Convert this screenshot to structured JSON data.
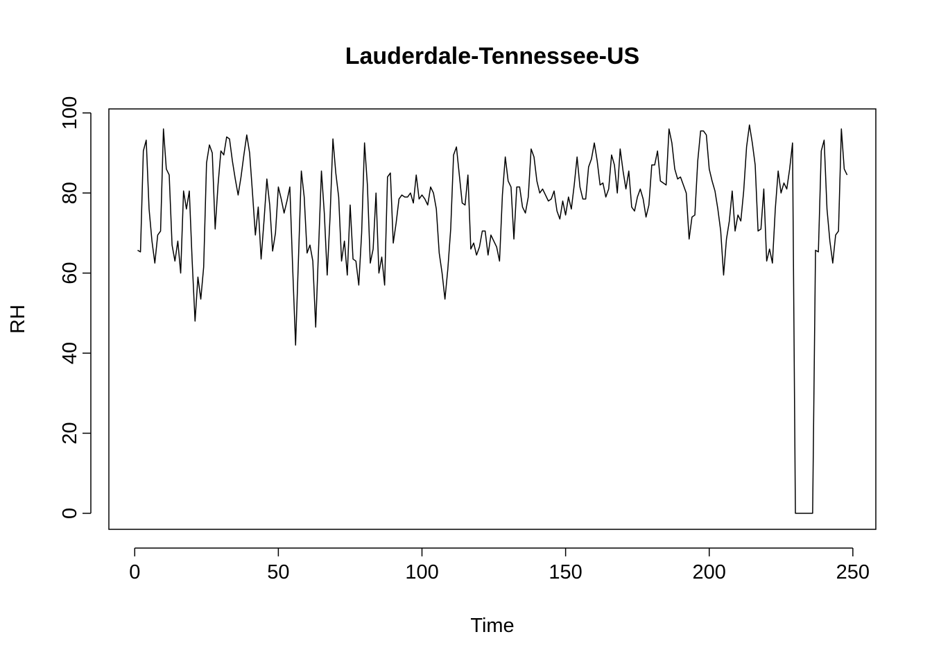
{
  "chart_data": {
    "type": "line",
    "title": "Lauderdale-Tennessee-US",
    "xlabel": "Time",
    "ylabel": "RH",
    "xlim": [
      -9,
      258
    ],
    "ylim": [
      -4,
      101
    ],
    "x_ticks": [
      0,
      50,
      100,
      150,
      200,
      250
    ],
    "y_ticks": [
      0,
      20,
      40,
      60,
      80,
      100
    ],
    "grid": false,
    "legend": "none",
    "line_color": "#000000",
    "x_start": 1,
    "series": [
      {
        "values": [
          65.7,
          65.3,
          90.5,
          93.2,
          76.0,
          68.0,
          62.5,
          69.5,
          70.5,
          96.0,
          86.0,
          84.5,
          67.0,
          63.0,
          68.0,
          60.0,
          80.5,
          76.0,
          80.5,
          63.0,
          48.0,
          59.0,
          53.5,
          61.5,
          87.5,
          92.0,
          90.0,
          71.0,
          82.0,
          90.5,
          89.5,
          94.0,
          93.5,
          88.0,
          83.5,
          79.5,
          84.0,
          89.5,
          94.5,
          90.0,
          80.0,
          69.5,
          76.5,
          63.5,
          73.0,
          83.5,
          77.0,
          65.5,
          70.0,
          81.5,
          78.5,
          75.0,
          78.0,
          81.5,
          61.0,
          42.0,
          63.5,
          85.5,
          79.0,
          65.0,
          67.0,
          63.0,
          46.5,
          66.0,
          85.5,
          75.0,
          59.5,
          74.0,
          93.5,
          85.0,
          79.0,
          63.0,
          68.0,
          59.5,
          77.0,
          63.5,
          63.0,
          57.0,
          70.0,
          92.5,
          82.0,
          62.5,
          66.0,
          80.0,
          60.0,
          64.0,
          57.0,
          84.0,
          85.0,
          67.5,
          72.5,
          78.5,
          79.5,
          79.0,
          79.0,
          80.0,
          77.5,
          84.5,
          78.5,
          79.5,
          78.5,
          77.0,
          81.5,
          80.0,
          76.0,
          65.0,
          60.0,
          53.5,
          61.0,
          71.0,
          89.5,
          91.5,
          84.5,
          77.5,
          77.0,
          84.5,
          66.0,
          67.5,
          64.5,
          66.5,
          70.5,
          70.5,
          64.5,
          69.5,
          68.0,
          66.5,
          63.0,
          79.5,
          89.0,
          83.0,
          81.5,
          68.5,
          81.5,
          81.5,
          76.5,
          75.0,
          79.0,
          91.0,
          89.0,
          83.0,
          80.0,
          81.0,
          79.5,
          78.0,
          78.5,
          80.5,
          75.5,
          73.5,
          78.0,
          74.5,
          79.0,
          76.0,
          82.0,
          89.0,
          81.5,
          78.5,
          78.5,
          86.5,
          88.5,
          92.5,
          88.0,
          82.0,
          82.5,
          79.0,
          81.0,
          89.5,
          87.0,
          80.0,
          91.0,
          85.5,
          81.0,
          85.5,
          76.5,
          75.5,
          79.0,
          81.0,
          78.5,
          74.0,
          77.0,
          87.0,
          87.0,
          90.5,
          83.0,
          82.5,
          82.0,
          96.0,
          92.5,
          86.0,
          83.5,
          84.0,
          82.0,
          80.0,
          68.5,
          74.0,
          74.5,
          88.0,
          95.5,
          95.5,
          94.5,
          86.0,
          83.0,
          80.5,
          76.0,
          70.5,
          59.5,
          68.5,
          73.0,
          80.5,
          70.5,
          74.5,
          73.0,
          80.5,
          91.5,
          97.0,
          92.5,
          87.0,
          70.5,
          71.0,
          81.0,
          63.0,
          66.0,
          62.5,
          76.0,
          85.5,
          80.0,
          82.5,
          81.0,
          86.0,
          92.5,
          0.0,
          0.0,
          0.0,
          0.0,
          0.0,
          0.0,
          0.0,
          65.7,
          65.3,
          90.5,
          93.2,
          76.0,
          68.0,
          62.5,
          69.5,
          70.5,
          96.0,
          86.0,
          84.5
        ]
      }
    ]
  }
}
